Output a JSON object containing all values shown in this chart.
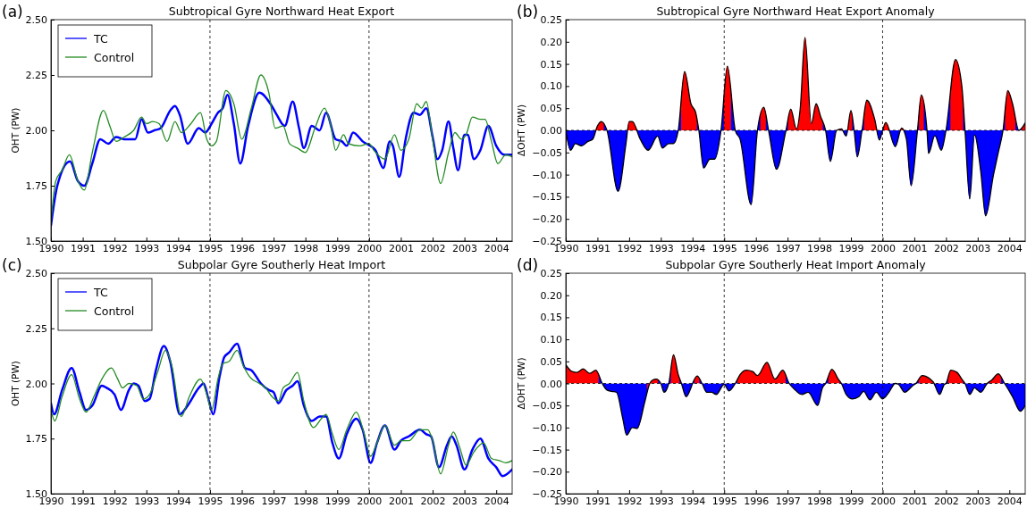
{
  "chart_data": [
    {
      "type": "line",
      "title": "Subtropical Gyre Northward Heat Export",
      "ylabel": "OHT (PW)",
      "annotations": [
        "(a)"
      ],
      "legend": "top left",
      "xlim": [
        1990,
        2004.5
      ],
      "xticks": [
        1990,
        1991,
        1992,
        1993,
        1994,
        1995,
        1996,
        1997,
        1998,
        1999,
        2000,
        2001,
        2002,
        2003,
        2004
      ],
      "ylim": [
        1.5,
        2.5
      ],
      "yticks": [
        {
          "value": 1.5,
          "label": "1.50"
        },
        1.75,
        {
          "value": 2,
          "label": "2.00"
        },
        2.25,
        {
          "value": 2.5,
          "label": "2.50"
        }
      ],
      "ref_lines": [
        {
          "axis": "x",
          "value": 1995,
          "line_style": "dashed",
          "color": "#000000"
        },
        {
          "axis": "x",
          "value": 2000,
          "line_style": "dashed",
          "color": "#000000"
        }
      ],
      "series": [
        {
          "name": "TC",
          "color": "#0000ff",
          "x": [
            1990.0,
            1990.2,
            1990.6,
            1990.85,
            1991.05,
            1991.3,
            1991.55,
            1991.8,
            1992.05,
            1992.3,
            1992.65,
            1992.85,
            1993.05,
            1993.25,
            1993.45,
            1993.75,
            1993.9,
            1994.05,
            1994.3,
            1994.65,
            1994.85,
            1995.05,
            1995.25,
            1995.4,
            1995.55,
            1995.75,
            1995.95,
            1996.2,
            1996.55,
            1996.9,
            1997.1,
            1997.35,
            1997.6,
            1997.8,
            1997.95,
            1998.2,
            1998.45,
            1998.65,
            1998.95,
            1999.15,
            1999.3,
            1999.5,
            1999.8,
            2000.2,
            2000.45,
            2000.65,
            2000.75,
            2000.95,
            2001.15,
            2001.4,
            2001.6,
            2001.8,
            2002.0,
            2002.15,
            2002.3,
            2002.5,
            2002.65,
            2002.8,
            2003.0,
            2003.1,
            2003.3,
            2003.5,
            2003.75,
            2004.0,
            2004.25,
            2004.5
          ],
          "values": [
            1.57,
            1.75,
            1.86,
            1.77,
            1.75,
            1.85,
            1.96,
            1.94,
            1.97,
            1.96,
            1.96,
            2.05,
            1.99,
            2.0,
            2.01,
            2.09,
            2.11,
            2.07,
            1.94,
            2.01,
            1.99,
            2.03,
            2.08,
            2.1,
            2.16,
            2.03,
            1.85,
            2.02,
            2.17,
            2.12,
            2.07,
            2.02,
            2.13,
            2.01,
            1.92,
            2.02,
            2.0,
            2.08,
            1.96,
            1.95,
            1.93,
            1.99,
            1.95,
            1.91,
            1.83,
            1.95,
            1.93,
            1.79,
            1.96,
            2.08,
            2.07,
            2.1,
            1.97,
            1.87,
            1.91,
            2.04,
            1.92,
            1.82,
            1.98,
            1.98,
            1.87,
            1.91,
            2.02,
            1.93,
            1.89,
            1.89
          ]
        },
        {
          "name": "Control",
          "color": "#228b22",
          "x": [
            1990.0,
            1990.15,
            1990.35,
            1990.58,
            1990.85,
            1991.05,
            1991.3,
            1991.65,
            1991.85,
            1992.05,
            1992.3,
            1992.6,
            1992.85,
            1993.0,
            1993.2,
            1993.4,
            1993.65,
            1993.9,
            1994.1,
            1994.4,
            1994.7,
            1994.9,
            1995.05,
            1995.2,
            1995.5,
            1995.75,
            1996.0,
            1996.3,
            1996.6,
            1996.85,
            1997.05,
            1997.3,
            1997.5,
            1997.75,
            1998.0,
            1998.3,
            1998.6,
            1998.8,
            1998.95,
            1999.2,
            1999.35,
            1999.7,
            2000.0,
            2000.15,
            2000.5,
            2000.8,
            2001.0,
            2001.25,
            2001.5,
            2001.65,
            2001.8,
            2002.0,
            2002.25,
            2002.5,
            2002.7,
            2002.9,
            2003.05,
            2003.25,
            2003.5,
            2003.65,
            2003.85,
            2004.05,
            2004.3,
            2004.5
          ],
          "values": [
            1.58,
            1.77,
            1.82,
            1.89,
            1.77,
            1.73,
            1.9,
            2.09,
            2.02,
            1.95,
            1.97,
            2.0,
            2.06,
            2.03,
            2.04,
            2.03,
            1.95,
            2.04,
            1.99,
            2.03,
            2.08,
            1.96,
            1.93,
            1.95,
            2.18,
            2.12,
            1.96,
            2.1,
            2.25,
            2.17,
            2.01,
            2.02,
            1.94,
            1.92,
            1.9,
            2.01,
            2.1,
            2.02,
            1.91,
            1.98,
            1.94,
            1.93,
            1.94,
            1.91,
            1.87,
            1.98,
            1.91,
            1.96,
            2.12,
            2.1,
            2.13,
            1.96,
            1.76,
            1.9,
            1.99,
            1.96,
            1.98,
            2.06,
            2.05,
            2.05,
            1.95,
            1.85,
            1.89,
            1.88
          ]
        }
      ]
    },
    {
      "type": "area",
      "title": "Subtropical Gyre Northward Heat Export Anomaly",
      "ylabel": "ΔOHT (PW)",
      "annotations": [
        "(b)"
      ],
      "xlim": [
        1990,
        2004.5
      ],
      "xticks": [
        1990,
        1991,
        1992,
        1993,
        1994,
        1995,
        1996,
        1997,
        1998,
        1999,
        2000,
        2001,
        2002,
        2003,
        2004
      ],
      "ylim": [
        -0.25,
        0.25
      ],
      "yticks": [
        {
          "value": -0.25,
          "label": "−0.25"
        },
        {
          "value": -0.2,
          "label": "−0.20"
        },
        {
          "value": -0.15,
          "label": "−0.15"
        },
        {
          "value": -0.1,
          "label": "−0.10"
        },
        {
          "value": -0.05,
          "label": "−0.05"
        },
        {
          "value": 0,
          "label": "0.00"
        },
        0.05,
        {
          "value": 0.1,
          "label": "0.10"
        },
        0.15,
        {
          "value": 0.2,
          "label": "0.20"
        },
        0.25
      ],
      "ref_lines": [
        {
          "axis": "x",
          "value": 1995,
          "line_style": "dashed",
          "color": "#000000"
        },
        {
          "axis": "x",
          "value": 2000,
          "line_style": "dashed",
          "color": "#000000"
        },
        {
          "axis": "y",
          "value": 0,
          "line_style": "dashed",
          "color": "#000000"
        }
      ],
      "series": [
        {
          "color": "#000000",
          "colors": [
            "#0000ff",
            "#0000ff",
            "#0000ff",
            "#0000ff",
            "#0000ff",
            "#0000ff",
            "#ff0000",
            "#ff0000",
            "#0000ff",
            "#0000ff",
            "#0000ff",
            "#ff0000",
            "#ff0000",
            "#0000ff",
            "#0000ff",
            "#0000ff",
            "#0000ff",
            "#0000ff",
            "#0000ff",
            "#0000ff",
            "#ff0000",
            "#ff0000",
            "#ff0000",
            "#0000ff",
            "#0000ff",
            "#0000ff",
            "#0000ff",
            "#0000ff",
            "#ff0000",
            "#0000ff",
            "#0000ff",
            "#0000ff",
            "#0000ff",
            "#ff0000",
            "#0000ff",
            "#0000ff",
            "#0000ff",
            "#ff0000",
            "#ff0000",
            "#ff0000",
            "#ff0000",
            "#ff0000",
            "#ff0000",
            "#ff0000",
            "#0000ff",
            "#0000ff",
            "#0000ff",
            "#ff0000",
            "#0000ff",
            "#ff0000",
            "#0000ff",
            "#0000ff",
            "#0000ff",
            "#ff0000",
            "#ff0000",
            "#0000ff",
            "#0000ff",
            "#ff0000",
            "#0000ff",
            "#ff0000",
            "#0000ff",
            "#0000ff",
            "#0000ff",
            "#ff0000",
            "#0000ff",
            "#0000ff",
            "#0000ff",
            "#0000ff",
            "#0000ff",
            "#ff0000",
            "#ff0000",
            "#0000ff",
            "#0000ff",
            "#0000ff",
            "#0000ff",
            "#0000ff",
            "#0000ff",
            "#0000ff",
            "#0000ff",
            "#ff0000",
            "#ff0000",
            "#0000ff",
            "#ff0000"
          ],
          "x": [
            1990.0,
            1990.15,
            1990.3,
            1990.5,
            1990.7,
            1990.85,
            1991.0,
            1991.12,
            1991.3,
            1991.65,
            1991.9,
            1992.0,
            1992.1,
            1992.35,
            1992.6,
            1992.9,
            1993.05,
            1993.25,
            1993.4,
            1993.55,
            1993.75,
            1993.95,
            1994.1,
            1994.2,
            1994.35,
            1994.55,
            1994.7,
            1994.9,
            1995.1,
            1995.35,
            1995.5,
            1995.85,
            1996.05,
            1996.25,
            1996.4,
            1996.65,
            1996.95,
            1997.1,
            1997.28,
            1997.4,
            1997.55,
            1997.75,
            1997.9,
            1998.05,
            1998.2,
            1998.35,
            1998.55,
            1998.7,
            1998.85,
            1999.0,
            1999.1,
            1999.2,
            1999.35,
            1999.5,
            1999.75,
            1999.9,
            2000.0,
            2000.1,
            2000.4,
            2000.6,
            2000.75,
            2000.9,
            2001.1,
            2001.22,
            2001.4,
            2001.45,
            2001.65,
            2001.85,
            2002.0,
            2002.3,
            2002.5,
            2002.6,
            2002.75,
            2002.9,
            2003.1,
            2003.25,
            2003.5,
            2003.65,
            2003.8,
            2003.95,
            2004.1,
            2004.3,
            2004.5
          ],
          "values": [
            0.0,
            -0.045,
            -0.03,
            -0.035,
            -0.025,
            -0.02,
            0.01,
            0.02,
            0.0,
            -0.138,
            -0.03,
            0.02,
            0.02,
            -0.02,
            -0.045,
            -0.013,
            -0.04,
            -0.03,
            -0.03,
            0.0,
            0.133,
            0.06,
            0.04,
            0.0,
            -0.085,
            -0.065,
            -0.065,
            0.0,
            0.145,
            0.0,
            -0.02,
            -0.168,
            0.0,
            0.052,
            0.0,
            -0.088,
            0.0,
            0.048,
            0.003,
            0.05,
            0.21,
            0.015,
            0.06,
            0.03,
            0.0,
            -0.07,
            0.0,
            0.003,
            -0.013,
            0.045,
            0.0,
            -0.06,
            0.0,
            0.068,
            0.025,
            -0.022,
            0.0,
            0.018,
            -0.037,
            0.005,
            -0.02,
            -0.125,
            0.0,
            0.08,
            0.0,
            -0.052,
            -0.012,
            -0.045,
            0.0,
            0.16,
            0.1,
            0.0,
            -0.155,
            -0.01,
            -0.095,
            -0.193,
            -0.1,
            -0.05,
            0.0,
            0.09,
            0.06,
            0.0,
            0.017
          ]
        }
      ]
    },
    {
      "type": "line",
      "title": "Subpolar Gyre Southerly Heat Import",
      "ylabel": "OHT (PW)",
      "annotations": [
        "(c)"
      ],
      "legend": "top left",
      "xlim": [
        1990,
        2004.5
      ],
      "xticks": [
        1990,
        1991,
        1992,
        1993,
        1994,
        1995,
        1996,
        1997,
        1998,
        1999,
        2000,
        2001,
        2002,
        2003,
        2004
      ],
      "ylim": [
        1.5,
        2.5
      ],
      "yticks": [
        {
          "value": 1.5,
          "label": "1.50"
        },
        1.75,
        {
          "value": 2,
          "label": "2.00"
        },
        2.25,
        {
          "value": 2.5,
          "label": "2.50"
        }
      ],
      "ref_lines": [
        {
          "axis": "x",
          "value": 1995,
          "line_style": "dashed",
          "color": "#000000"
        },
        {
          "axis": "x",
          "value": 2000,
          "line_style": "dashed",
          "color": "#000000"
        }
      ],
      "series": [
        {
          "name": "TC",
          "color": "#0000ff",
          "x": [
            1990.0,
            1990.1,
            1990.35,
            1990.65,
            1990.9,
            1991.1,
            1991.3,
            1991.6,
            1991.75,
            1992.0,
            1992.2,
            1992.45,
            1992.6,
            1992.75,
            1992.95,
            1993.1,
            1993.3,
            1993.55,
            1993.75,
            1994.05,
            1994.3,
            1994.65,
            1994.8,
            1994.95,
            1995.1,
            1995.3,
            1995.45,
            1995.6,
            1995.85,
            1996.1,
            1996.3,
            1996.6,
            1996.85,
            1997.0,
            1997.15,
            1997.4,
            1997.6,
            1997.75,
            1997.95,
            1998.2,
            1998.45,
            1998.65,
            1998.85,
            1999.05,
            1999.3,
            1999.6,
            1999.8,
            2000.05,
            2000.25,
            2000.5,
            2000.8,
            2001.0,
            2001.25,
            2001.6,
            2001.8,
            2001.95,
            2002.2,
            2002.45,
            2002.6,
            2002.75,
            2003.0,
            2003.25,
            2003.5,
            2003.75,
            2004.0,
            2004.2,
            2004.5
          ],
          "values": [
            1.91,
            1.86,
            1.97,
            2.07,
            1.96,
            1.88,
            1.9,
            1.99,
            1.98,
            1.95,
            1.88,
            1.97,
            2.0,
            1.99,
            1.92,
            1.93,
            2.06,
            2.17,
            2.1,
            1.86,
            1.9,
            1.98,
            2.0,
            1.93,
            1.86,
            2.03,
            2.12,
            2.14,
            2.18,
            2.07,
            2.06,
            2.0,
            1.97,
            1.96,
            1.91,
            1.97,
            1.99,
            2.01,
            1.9,
            1.83,
            1.85,
            1.85,
            1.73,
            1.66,
            1.77,
            1.84,
            1.79,
            1.64,
            1.73,
            1.81,
            1.7,
            1.74,
            1.76,
            1.79,
            1.77,
            1.76,
            1.62,
            1.72,
            1.76,
            1.72,
            1.61,
            1.7,
            1.75,
            1.66,
            1.62,
            1.58,
            1.61
          ]
        },
        {
          "name": "Control",
          "color": "#228b22",
          "x": [
            1990.0,
            1990.12,
            1990.35,
            1990.65,
            1990.9,
            1991.1,
            1991.35,
            1991.6,
            1991.9,
            1992.1,
            1992.25,
            1992.45,
            1992.7,
            1992.9,
            1993.1,
            1993.35,
            1993.6,
            1993.8,
            1994.1,
            1994.35,
            1994.7,
            1994.9,
            1995.05,
            1995.25,
            1995.4,
            1995.6,
            1995.85,
            1996.05,
            1996.25,
            1996.55,
            1996.75,
            1996.95,
            1997.15,
            1997.3,
            1997.5,
            1997.75,
            1997.95,
            1998.25,
            1998.5,
            1998.65,
            1998.85,
            1999.05,
            1999.3,
            1999.6,
            1999.85,
            2000.05,
            2000.25,
            2000.5,
            2000.8,
            2001.0,
            2001.25,
            2001.6,
            2001.85,
            2002.0,
            2002.25,
            2002.5,
            2002.65,
            2002.85,
            2003.05,
            2003.3,
            2003.6,
            2003.85,
            2004.1,
            2004.3,
            2004.5
          ],
          "values": [
            1.88,
            1.83,
            1.94,
            2.04,
            1.93,
            1.87,
            1.94,
            2.02,
            2.07,
            2.02,
            1.98,
            2.0,
            1.99,
            1.93,
            1.95,
            2.05,
            2.15,
            2.08,
            1.85,
            1.94,
            2.02,
            1.95,
            1.88,
            2.02,
            2.09,
            2.1,
            2.15,
            2.08,
            2.03,
            2.0,
            1.98,
            1.94,
            1.92,
            1.98,
            2.0,
            2.05,
            1.92,
            1.8,
            1.84,
            1.86,
            1.77,
            1.7,
            1.79,
            1.87,
            1.77,
            1.67,
            1.73,
            1.81,
            1.72,
            1.74,
            1.74,
            1.79,
            1.79,
            1.74,
            1.59,
            1.72,
            1.78,
            1.71,
            1.63,
            1.69,
            1.73,
            1.66,
            1.65,
            1.64,
            1.65
          ]
        }
      ]
    },
    {
      "type": "area",
      "title": "Subpolar Gyre Southerly Heat Import Anomaly",
      "ylabel": "ΔOHT (PW)",
      "annotations": [
        "(d)"
      ],
      "xlim": [
        1990,
        2004.5
      ],
      "xticks": [
        1990,
        1991,
        1992,
        1993,
        1994,
        1995,
        1996,
        1997,
        1998,
        1999,
        2000,
        2001,
        2002,
        2003,
        2004
      ],
      "ylim": [
        -0.25,
        0.25
      ],
      "yticks": [
        {
          "value": -0.25,
          "label": "−0.25"
        },
        {
          "value": -0.2,
          "label": "−0.20"
        },
        {
          "value": -0.15,
          "label": "−0.15"
        },
        {
          "value": -0.1,
          "label": "−0.10"
        },
        {
          "value": -0.05,
          "label": "−0.05"
        },
        {
          "value": 0,
          "label": "0.00"
        },
        0.05,
        {
          "value": 0.1,
          "label": "0.10"
        },
        0.15,
        {
          "value": 0.2,
          "label": "0.20"
        },
        0.25
      ],
      "ref_lines": [
        {
          "axis": "x",
          "value": 1995,
          "line_style": "dashed",
          "color": "#000000"
        },
        {
          "axis": "x",
          "value": 2000,
          "line_style": "dashed",
          "color": "#000000"
        },
        {
          "axis": "y",
          "value": 0,
          "line_style": "dashed",
          "color": "#000000"
        }
      ],
      "series": [
        {
          "color": "#000000",
          "colors": [
            "#ff0000",
            "#ff0000",
            "#ff0000",
            "#ff0000",
            "#ff0000",
            "#ff0000",
            "#0000ff",
            "#0000ff",
            "#0000ff",
            "#0000ff",
            "#0000ff",
            "#0000ff",
            "#0000ff",
            "#0000ff",
            "#0000ff",
            "#ff0000",
            "#ff0000",
            "#ff0000",
            "#0000ff",
            "#0000ff",
            "#0000ff",
            "#ff0000",
            "#ff0000",
            "#0000ff",
            "#0000ff",
            "#0000ff",
            "#0000ff",
            "#ff0000",
            "#0000ff",
            "#0000ff",
            "#0000ff",
            "#0000ff",
            "#0000ff",
            "#0000ff",
            "#0000ff",
            "#ff0000",
            "#ff0000",
            "#ff0000",
            "#ff0000",
            "#ff0000",
            "#ff0000",
            "#ff0000",
            "#0000ff",
            "#0000ff",
            "#0000ff",
            "#0000ff",
            "#0000ff",
            "#0000ff",
            "#0000ff",
            "#ff0000",
            "#ff0000",
            "#0000ff",
            "#0000ff",
            "#0000ff",
            "#0000ff",
            "#0000ff",
            "#0000ff",
            "#0000ff",
            "#0000ff",
            "#0000ff",
            "#0000ff",
            "#0000ff",
            "#0000ff",
            "#0000ff",
            "#0000ff",
            "#ff0000",
            "#ff0000",
            "#ff0000",
            "#0000ff",
            "#0000ff",
            "#0000ff",
            "#ff0000",
            "#ff0000",
            "#ff0000",
            "#0000ff",
            "#0000ff",
            "#0000ff",
            "#0000ff",
            "#0000ff",
            "#0000ff",
            "#ff0000",
            "#ff0000",
            "#0000ff",
            "#0000ff",
            "#0000ff",
            "#0000ff"
          ],
          "x": [
            1990.0,
            1990.2,
            1990.35,
            1990.55,
            1990.75,
            1990.95,
            1991.15,
            1991.3,
            1991.45,
            1991.6,
            1991.8,
            1991.92,
            1992.1,
            1992.25,
            1992.5,
            1992.65,
            1992.75,
            1992.85,
            1993.0,
            1993.1,
            1993.25,
            1993.4,
            1993.55,
            1993.65,
            1993.8,
            1993.95,
            1994.0,
            1994.15,
            1994.3,
            1994.45,
            1994.6,
            1994.75,
            1995.0,
            1995.15,
            1995.35,
            1995.5,
            1995.7,
            1995.9,
            1996.05,
            1996.35,
            1996.6,
            1996.85,
            1997.05,
            1997.2,
            1997.45,
            1997.65,
            1997.95,
            1998.1,
            1998.2,
            1998.4,
            1998.6,
            1998.7,
            1998.85,
            1999.05,
            1999.25,
            1999.4,
            1999.6,
            1999.8,
            2000.0,
            2000.2,
            2000.4,
            2000.5,
            2000.7,
            2000.95,
            2001.05,
            2001.25,
            2001.5,
            2001.6,
            2001.8,
            2001.95,
            2002.0,
            2002.15,
            2002.35,
            2002.5,
            2002.6,
            2002.75,
            2002.9,
            2003.0,
            2003.1,
            2003.3,
            2003.45,
            2003.65,
            2003.85,
            2004.1,
            2004.35,
            2004.5
          ],
          "values": [
            0.043,
            0.027,
            0.025,
            0.033,
            0.023,
            0.03,
            0.0,
            -0.015,
            -0.018,
            -0.02,
            -0.08,
            -0.117,
            -0.1,
            -0.102,
            -0.04,
            0.0,
            0.008,
            0.01,
            0.0,
            -0.02,
            0.0,
            0.065,
            0.02,
            0.0,
            -0.03,
            -0.01,
            0.0,
            0.017,
            0.0,
            -0.02,
            -0.02,
            -0.025,
            -0.002,
            -0.017,
            0.0,
            0.02,
            0.03,
            0.027,
            0.018,
            0.048,
            0.01,
            0.03,
            0.0,
            -0.012,
            -0.025,
            -0.02,
            -0.05,
            -0.01,
            0.0,
            0.032,
            0.01,
            0.0,
            -0.025,
            -0.035,
            -0.03,
            -0.018,
            -0.037,
            -0.02,
            -0.035,
            -0.02,
            0.0,
            -0.002,
            -0.02,
            -0.005,
            0.0,
            0.018,
            0.01,
            0.003,
            -0.025,
            -0.002,
            0.0,
            0.03,
            0.025,
            0.01,
            0.0,
            -0.025,
            -0.01,
            -0.015,
            -0.02,
            0.0,
            0.008,
            0.022,
            0.0,
            -0.03,
            -0.063,
            -0.05
          ]
        }
      ]
    }
  ]
}
